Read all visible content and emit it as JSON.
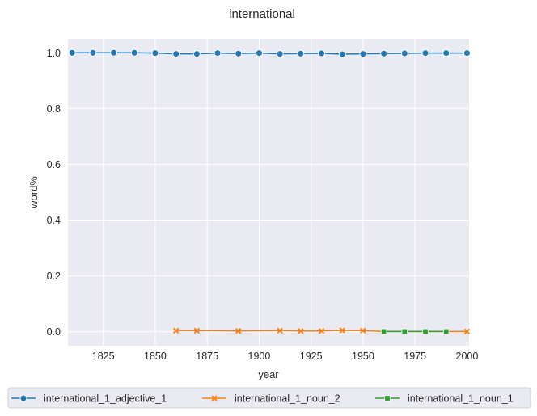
{
  "chart_data": {
    "type": "line",
    "title": "international",
    "xlabel": "year",
    "ylabel": "word%",
    "xlim": [
      1808,
      2001
    ],
    "ylim": [
      -0.05,
      1.05
    ],
    "xticks": [
      1825,
      1850,
      1875,
      1900,
      1925,
      1950,
      1975,
      2000
    ],
    "yticks": [
      0.0,
      0.2,
      0.4,
      0.6,
      0.8,
      1.0
    ],
    "grid": true,
    "legend_position": "bottom",
    "series": [
      {
        "name": "international_1_adjective_1",
        "color": "#1f77b4",
        "marker": "circle",
        "x": [
          1810,
          1820,
          1830,
          1840,
          1850,
          1860,
          1870,
          1880,
          1890,
          1900,
          1910,
          1920,
          1930,
          1940,
          1950,
          1960,
          1970,
          1980,
          1990,
          2000
        ],
        "y": [
          1.0,
          1.0,
          1.0,
          1.0,
          0.999,
          0.996,
          0.996,
          0.999,
          0.997,
          0.999,
          0.996,
          0.997,
          0.998,
          0.995,
          0.996,
          0.997,
          0.998,
          0.999,
          0.999,
          0.999
        ]
      },
      {
        "name": "international_1_noun_2",
        "color": "#ff7f0e",
        "marker": "x",
        "x": [
          1860,
          1870,
          1890,
          1910,
          1920,
          1930,
          1940,
          1950,
          1960,
          1970,
          1980,
          1990,
          2000
        ],
        "y": [
          0.004,
          0.004,
          0.003,
          0.004,
          0.003,
          0.003,
          0.005,
          0.004,
          0.001,
          0.001,
          0.001,
          0.001,
          0.001
        ]
      },
      {
        "name": "international_1_noun_1",
        "color": "#2ca02c",
        "marker": "square",
        "x": [
          1960,
          1970,
          1980,
          1990
        ],
        "y": [
          0.001,
          0.001,
          0.001,
          0.001
        ]
      }
    ]
  }
}
